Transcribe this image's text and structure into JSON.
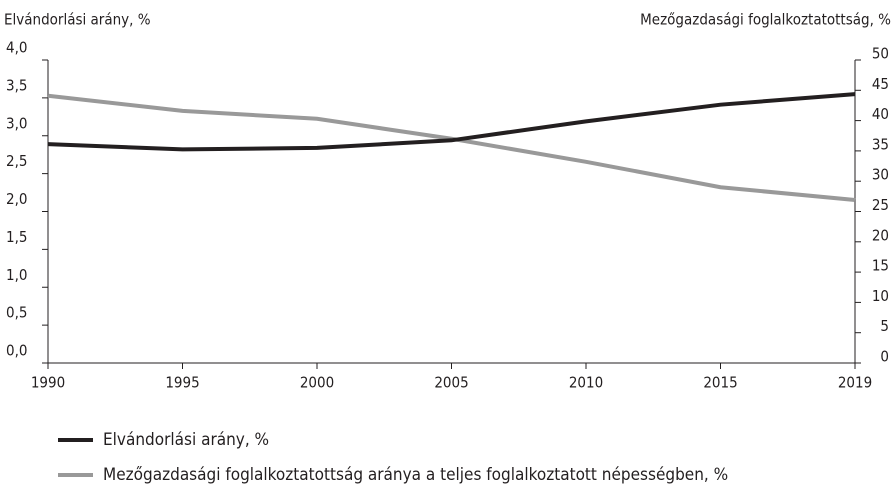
{
  "chart_data": {
    "type": "line",
    "y_label": "Elvándorlási arány, %",
    "y2_label": "Mezőgazdasági foglalkoztatottság, %",
    "categories": [
      "1990",
      "1995",
      "2000",
      "2005",
      "2010",
      "2015",
      "2019"
    ],
    "series": [
      {
        "name": "Elvándorlási arány, %",
        "color": "#231f20",
        "values": [
          2.89,
          2.82,
          2.84,
          2.94,
          3.19,
          3.41,
          3.55
        ]
      },
      {
        "name": "Mezőgazdasági foglalkoztatottság aránya a teljes foglalkoztatott népességben, %",
        "color": "#999999",
        "axis": "y2",
        "values": [
          44.1,
          41.6,
          40.3,
          37.0,
          33.2,
          29.0,
          26.9
        ]
      }
    ],
    "ylim": [
      0,
      4
    ],
    "yticks": [
      {
        "value": 0,
        "label": "0,0"
      },
      {
        "value": 0.5,
        "label": "0,5"
      },
      {
        "value": 1,
        "label": "1,0"
      },
      {
        "value": 1.5,
        "label": "1,5"
      },
      {
        "value": 2,
        "label": "2,0"
      },
      {
        "value": 2.5,
        "label": "2,5"
      },
      {
        "value": 3,
        "label": "3,0"
      },
      {
        "value": 3.5,
        "label": "3,5"
      },
      {
        "value": 4,
        "label": "4,0"
      }
    ],
    "y2lim": [
      0,
      50
    ],
    "y2ticks": [
      0,
      5,
      10,
      15,
      20,
      25,
      30,
      35,
      40,
      45,
      50
    ]
  }
}
